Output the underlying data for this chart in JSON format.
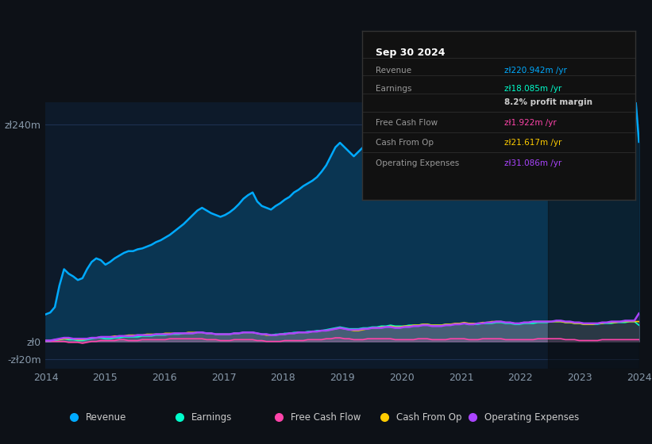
{
  "title": "Sep 30 2024",
  "background_color": "#0d1117",
  "plot_bg_color": "#0d1a2a",
  "grid_color": "#1e3050",
  "axis_label_color": "#8899aa",
  "y_ticks": [
    "zł240m",
    "zł0",
    "-zł20m"
  ],
  "y_tick_vals": [
    240,
    0,
    -20
  ],
  "x_ticks": [
    "2014",
    "2015",
    "2016",
    "2017",
    "2018",
    "2019",
    "2020",
    "2021",
    "2022",
    "2023",
    "2024"
  ],
  "ylim": [
    -30,
    265
  ],
  "xlim": [
    0,
    130
  ],
  "legend": [
    {
      "label": "Revenue",
      "color": "#00aaff"
    },
    {
      "label": "Earnings",
      "color": "#00ffcc"
    },
    {
      "label": "Free Cash Flow",
      "color": "#ff44aa"
    },
    {
      "label": "Cash From Op",
      "color": "#ffcc00"
    },
    {
      "label": "Operating Expenses",
      "color": "#aa44ff"
    }
  ],
  "tooltip": {
    "date": "Sep 30 2024",
    "bg": "#111111",
    "border": "#333333",
    "rows": [
      {
        "label": "Revenue",
        "value": "zł220.942m /yr",
        "value_color": "#00aaff"
      },
      {
        "label": "Earnings",
        "value": "zł18.085m /yr",
        "value_color": "#00ffcc"
      },
      {
        "label": "margin",
        "value": "8.2% profit margin",
        "value_color": "#cccccc"
      },
      {
        "label": "Free Cash Flow",
        "value": "zł1.922m /yr",
        "value_color": "#ff44aa"
      },
      {
        "label": "Cash From Op",
        "value": "zł21.617m /yr",
        "value_color": "#ffcc00"
      },
      {
        "label": "Operating Expenses",
        "value": "zł31.086m /yr",
        "value_color": "#aa44ff"
      }
    ]
  },
  "revenue": [
    30,
    32,
    38,
    62,
    80,
    75,
    72,
    68,
    70,
    80,
    88,
    92,
    90,
    85,
    88,
    92,
    95,
    98,
    100,
    100,
    102,
    103,
    105,
    107,
    110,
    112,
    115,
    118,
    122,
    126,
    130,
    135,
    140,
    145,
    148,
    145,
    142,
    140,
    138,
    140,
    143,
    147,
    152,
    158,
    162,
    165,
    155,
    150,
    148,
    146,
    150,
    153,
    157,
    160,
    165,
    168,
    172,
    175,
    178,
    182,
    188,
    195,
    205,
    215,
    220,
    215,
    210,
    205,
    210,
    215,
    225,
    232,
    238,
    240,
    242,
    245,
    240,
    238,
    240,
    242,
    245,
    248,
    250,
    252,
    248,
    245,
    248,
    250,
    252,
    255,
    258,
    260,
    255,
    250,
    255,
    260,
    265,
    268,
    270,
    268,
    265,
    262,
    260,
    258,
    260,
    262,
    265,
    268,
    270,
    272,
    275,
    278,
    280,
    275,
    270,
    268,
    265,
    262,
    260,
    258,
    262,
    265,
    268,
    270,
    272,
    275,
    280,
    283,
    285,
    221
  ],
  "earnings": [
    0,
    0,
    1,
    2,
    3,
    2,
    2,
    1,
    1,
    2,
    3,
    4,
    4,
    3,
    3,
    4,
    4,
    5,
    5,
    5,
    5,
    6,
    6,
    6,
    7,
    7,
    7,
    8,
    8,
    8,
    9,
    9,
    9,
    10,
    10,
    9,
    9,
    8,
    8,
    8,
    8,
    9,
    9,
    10,
    10,
    10,
    9,
    8,
    8,
    7,
    8,
    8,
    9,
    9,
    10,
    10,
    10,
    11,
    11,
    12,
    12,
    13,
    14,
    15,
    16,
    15,
    14,
    14,
    14,
    15,
    15,
    16,
    16,
    17,
    17,
    18,
    17,
    17,
    17,
    18,
    18,
    18,
    19,
    19,
    18,
    18,
    18,
    19,
    19,
    19,
    20,
    20,
    19,
    19,
    19,
    20,
    20,
    20,
    21,
    21,
    20,
    20,
    19,
    19,
    20,
    20,
    20,
    21,
    21,
    21,
    22,
    22,
    22,
    21,
    21,
    20,
    20,
    19,
    19,
    19,
    19,
    20,
    20,
    20,
    21,
    21,
    21,
    22,
    22,
    18
  ],
  "free_cash_flow": [
    0,
    0,
    0,
    0,
    0,
    -1,
    -1,
    -1,
    -2,
    -1,
    0,
    0,
    1,
    1,
    1,
    1,
    2,
    2,
    1,
    1,
    1,
    2,
    2,
    2,
    2,
    2,
    2,
    3,
    3,
    3,
    3,
    3,
    3,
    3,
    3,
    2,
    2,
    2,
    1,
    1,
    1,
    2,
    2,
    2,
    2,
    2,
    1,
    1,
    0,
    0,
    0,
    0,
    1,
    1,
    1,
    1,
    1,
    2,
    2,
    2,
    2,
    3,
    3,
    4,
    4,
    3,
    3,
    2,
    2,
    2,
    3,
    3,
    3,
    3,
    3,
    3,
    2,
    2,
    2,
    2,
    2,
    3,
    3,
    3,
    2,
    2,
    2,
    2,
    3,
    3,
    3,
    3,
    2,
    2,
    2,
    3,
    3,
    3,
    3,
    3,
    2,
    2,
    2,
    2,
    2,
    2,
    2,
    3,
    3,
    3,
    3,
    3,
    3,
    2,
    2,
    2,
    1,
    1,
    1,
    1,
    1,
    2,
    2,
    2,
    2,
    2,
    2,
    2,
    2,
    2
  ],
  "cash_from_op": [
    1,
    1,
    2,
    2,
    3,
    3,
    3,
    2,
    2,
    3,
    4,
    4,
    5,
    5,
    5,
    6,
    6,
    6,
    7,
    7,
    7,
    7,
    8,
    8,
    8,
    8,
    9,
    9,
    9,
    9,
    9,
    10,
    10,
    10,
    10,
    9,
    9,
    8,
    8,
    8,
    8,
    9,
    9,
    10,
    10,
    10,
    9,
    8,
    7,
    7,
    7,
    8,
    8,
    9,
    9,
    10,
    10,
    10,
    11,
    11,
    12,
    12,
    13,
    14,
    15,
    14,
    13,
    12,
    12,
    13,
    14,
    15,
    15,
    16,
    16,
    17,
    16,
    16,
    17,
    17,
    18,
    18,
    19,
    19,
    18,
    18,
    18,
    19,
    19,
    20,
    20,
    21,
    20,
    20,
    20,
    21,
    21,
    22,
    22,
    22,
    21,
    21,
    20,
    20,
    21,
    21,
    22,
    22,
    22,
    22,
    22,
    22,
    22,
    21,
    21,
    20,
    20,
    19,
    19,
    19,
    20,
    20,
    21,
    21,
    21,
    22,
    22,
    22,
    22,
    22
  ],
  "operating_expenses": [
    1,
    1,
    2,
    3,
    4,
    4,
    3,
    3,
    3,
    3,
    4,
    4,
    5,
    5,
    5,
    5,
    6,
    6,
    6,
    6,
    7,
    7,
    7,
    7,
    8,
    8,
    8,
    8,
    9,
    9,
    9,
    9,
    9,
    10,
    10,
    9,
    9,
    8,
    8,
    8,
    8,
    9,
    9,
    10,
    10,
    10,
    9,
    8,
    8,
    7,
    7,
    8,
    8,
    9,
    9,
    10,
    10,
    10,
    11,
    11,
    12,
    12,
    13,
    14,
    15,
    14,
    13,
    13,
    13,
    14,
    14,
    15,
    15,
    15,
    16,
    16,
    15,
    15,
    16,
    16,
    17,
    17,
    18,
    18,
    17,
    17,
    17,
    18,
    18,
    19,
    19,
    20,
    19,
    19,
    20,
    20,
    21,
    21,
    22,
    22,
    21,
    21,
    20,
    20,
    21,
    21,
    22,
    22,
    22,
    22,
    22,
    23,
    23,
    22,
    22,
    21,
    21,
    20,
    20,
    20,
    20,
    21,
    21,
    22,
    22,
    22,
    23,
    23,
    23,
    31
  ]
}
